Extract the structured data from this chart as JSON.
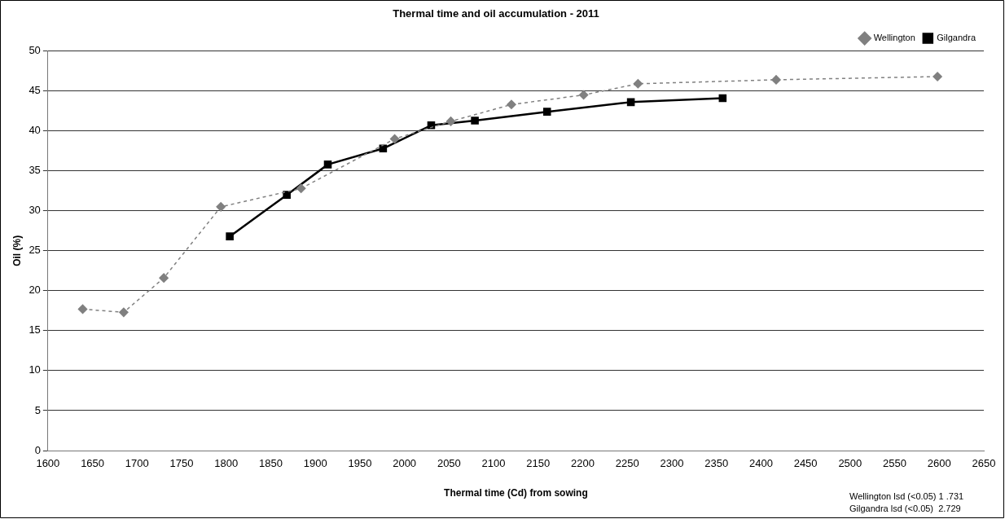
{
  "chart_data": {
    "type": "line",
    "title": "Thermal time and oil accumulation - 2011",
    "xlabel": "Thermal time (Cd) from sowing",
    "ylabel": "Oil (%)",
    "series": [
      {
        "name": "Wellington",
        "color": "#808080",
        "marker": "diamond",
        "line_style": "dashed",
        "x": [
          1639,
          1685,
          1730,
          1794,
          1884,
          1989,
          2052,
          2120,
          2201,
          2262,
          2417,
          2598
        ],
        "values": [
          17.7,
          17.3,
          21.6,
          30.5,
          32.8,
          39.0,
          41.2,
          43.3,
          44.5,
          45.9,
          46.4,
          46.8
        ]
      },
      {
        "name": "Gilgandra",
        "color": "#000000",
        "marker": "square",
        "line_style": "solid",
        "x": [
          1804,
          1868,
          1914,
          1976,
          2030,
          2079,
          2160,
          2254,
          2357
        ],
        "values": [
          26.8,
          32.0,
          35.8,
          37.8,
          40.7,
          41.3,
          42.4,
          43.6,
          44.1
        ]
      }
    ],
    "xlim": [
      1600,
      2650
    ],
    "xticks": [
      1600,
      1650,
      1700,
      1750,
      1800,
      1850,
      1900,
      1950,
      2000,
      2050,
      2100,
      2150,
      2200,
      2250,
      2300,
      2350,
      2400,
      2450,
      2500,
      2550,
      2600,
      2650
    ],
    "ylim": [
      0,
      50
    ],
    "yticks": [
      0,
      5,
      10,
      15,
      20,
      25,
      30,
      35,
      40,
      45,
      50
    ],
    "grid": "y",
    "legend": "top right",
    "annotations": [
      "Wellington lsd (<0.05) 1 .731",
      "Gilgandra lsd (<0.05)  2.729"
    ]
  }
}
